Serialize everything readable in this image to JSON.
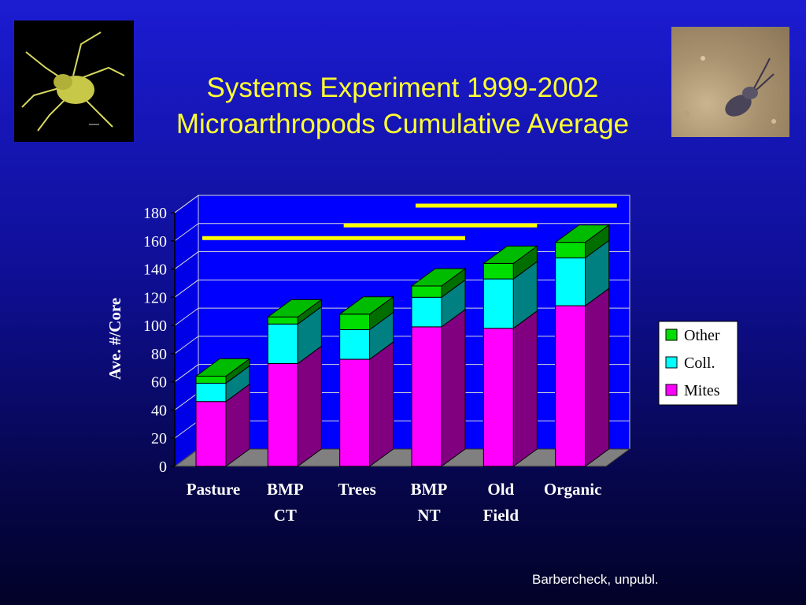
{
  "slide": {
    "title_line1": "Systems Experiment 1999-2002",
    "title_line2": "Microarthropods Cumulative Average",
    "credit": "Barbercheck, unpubl."
  },
  "colors": {
    "title": "#ffff33",
    "mites": "#ff00ff",
    "coll": "#00ffff",
    "other": "#00dd00",
    "significance_bars": "#ffff00"
  },
  "chart_data": {
    "type": "bar",
    "stacked": true,
    "three_d": true,
    "categories": [
      [
        "Pasture"
      ],
      [
        "BMP",
        "CT"
      ],
      [
        "Trees"
      ],
      [
        "BMP",
        "NT"
      ],
      [
        "Old",
        "Field"
      ],
      [
        "Organic"
      ]
    ],
    "series": [
      {
        "name": "Mites",
        "color": "#ff00ff",
        "values": [
          46,
          73,
          76,
          99,
          98,
          114
        ]
      },
      {
        "name": "Coll.",
        "color": "#00ffff",
        "values": [
          13,
          28,
          21,
          21,
          35,
          34
        ]
      },
      {
        "name": "Other",
        "color": "#00dd00",
        "values": [
          5,
          5,
          11,
          8,
          11,
          11
        ]
      }
    ],
    "ylabel": "Ave. #/Core",
    "ylim": [
      0,
      180
    ],
    "yticks": [
      0,
      20,
      40,
      60,
      80,
      100,
      120,
      140,
      160,
      180
    ],
    "grid": true,
    "legend_position": "right",
    "legend_order": [
      "Other",
      "Coll.",
      "Mites"
    ],
    "significance_bars": [
      {
        "from_category": 0,
        "to_category": 3,
        "level": 162
      },
      {
        "from_category": 2,
        "to_category": 4,
        "level": 171
      },
      {
        "from_category": 3,
        "to_category": 5,
        "level": 185
      }
    ]
  }
}
